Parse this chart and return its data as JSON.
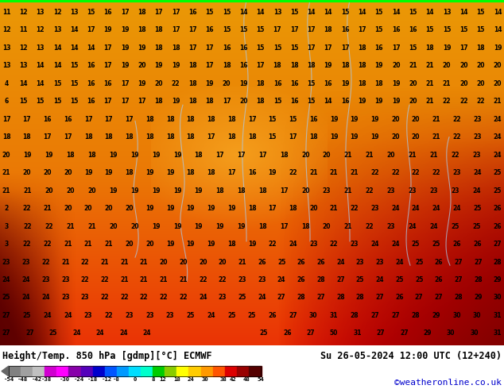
{
  "title_left": "Height/Temp. 850 hPa [gdmp][°C] ECMWF",
  "title_right": "Su 26-05-2024 12:00 UTC (12+240)",
  "credit": "©weatheronline.co.uk",
  "colorbar_tick_labels": [
    "-54",
    "-48",
    "-42",
    "-38",
    "-30",
    "-24",
    "-18",
    "-12",
    "-8",
    "0",
    "8",
    "12",
    "18",
    "24",
    "30",
    "38",
    "42",
    "48",
    "54"
  ],
  "colorbar_tick_vals": [
    -54,
    -48,
    -42,
    -38,
    -30,
    -24,
    -18,
    -12,
    -8,
    0,
    8,
    12,
    18,
    24,
    30,
    38,
    42,
    48,
    54
  ],
  "colorbar_colors": [
    "#808080",
    "#a0a0a0",
    "#c0c0c0",
    "#e0e0e0",
    "#c800c8",
    "#ff00ff",
    "#c800c8",
    "#9600c8",
    "#0000c8",
    "#0064ff",
    "#0096ff",
    "#00c8ff",
    "#00ffc8",
    "#00c800",
    "#96c800",
    "#ffff00",
    "#ffc800",
    "#ff9600",
    "#ff6400",
    "#ff3200",
    "#c80000",
    "#960000",
    "#640000"
  ],
  "cbar_data_min": -54,
  "cbar_data_max": 54,
  "green_bar_color": "#00ff00",
  "footer_bg": "#ffffff",
  "title_fontsize": 8.5,
  "credit_fontsize": 8,
  "credit_color": "#0000cc",
  "map_bg_colors": {
    "yellow_orange": "#f5a500",
    "orange": "#e07800",
    "dark_orange": "#c05000",
    "red": "#b02000",
    "dark_red": "#800000"
  },
  "numbers_rows": [
    [
      "11",
      "12",
      "13",
      "12",
      "13",
      "15",
      "16",
      "17",
      "18",
      "17",
      "17",
      "16",
      "15",
      "15",
      "14",
      "14",
      "13",
      "15",
      "14",
      "14",
      "15",
      "14",
      "15",
      "14",
      "15",
      "14",
      "13",
      "14",
      "15",
      "14"
    ],
    [
      "12",
      "11",
      "12",
      "13",
      "14",
      "17",
      "19",
      "19",
      "18",
      "18",
      "17",
      "17",
      "16",
      "15",
      "15",
      "15",
      "17",
      "17",
      "17",
      "18",
      "16",
      "17",
      "15",
      "16",
      "16",
      "15",
      "15",
      "15",
      "15",
      "14"
    ],
    [
      "13",
      "12",
      "13",
      "14",
      "14",
      "14",
      "17",
      "19",
      "19",
      "18",
      "18",
      "17",
      "17",
      "16",
      "16",
      "15",
      "15",
      "15",
      "17",
      "17",
      "17",
      "18",
      "16",
      "17",
      "15",
      "18",
      "19",
      "17",
      "18",
      "19"
    ],
    [
      "13",
      "13",
      "14",
      "14",
      "15",
      "16",
      "17",
      "19",
      "20",
      "19",
      "19",
      "18",
      "17",
      "18",
      "16",
      "17",
      "18",
      "18",
      "18",
      "19",
      "18",
      "18",
      "19",
      "20",
      "21",
      "21",
      "20",
      "20",
      "20",
      "20"
    ],
    [
      "4",
      "14",
      "14",
      "15",
      "15",
      "16",
      "16",
      "17",
      "19",
      "20",
      "22",
      "18",
      "19",
      "20",
      "19",
      "18",
      "16",
      "16",
      "15",
      "16",
      "19",
      "18",
      "18",
      "19",
      "20",
      "21",
      "21",
      "20",
      "20",
      "20"
    ],
    [
      "6",
      "15",
      "15",
      "15",
      "15",
      "16",
      "17",
      "17",
      "17",
      "18",
      "19",
      "18",
      "18",
      "17",
      "20",
      "18",
      "15",
      "16",
      "15",
      "14",
      "16",
      "19",
      "19",
      "19",
      "20",
      "21",
      "22",
      "22",
      "22",
      "21"
    ],
    [
      "17",
      "17",
      "16",
      "16",
      "17",
      "17",
      "17",
      "18",
      "18",
      "18",
      "18",
      "18",
      "17",
      "15",
      "15",
      "16",
      "19",
      "19",
      "19",
      "20",
      "20",
      "21",
      "22",
      "23",
      "24"
    ],
    [
      "18",
      "18",
      "17",
      "17",
      "18",
      "18",
      "18",
      "18",
      "18",
      "18",
      "17",
      "18",
      "18",
      "15",
      "17",
      "18",
      "19",
      "19",
      "19",
      "20",
      "20",
      "21",
      "22",
      "23",
      "24"
    ],
    [
      "20",
      "19",
      "19",
      "18",
      "18",
      "19",
      "19",
      "19",
      "19",
      "18",
      "17",
      "17",
      "17",
      "18",
      "20",
      "20",
      "21",
      "21",
      "20",
      "21",
      "21",
      "22",
      "23",
      "24"
    ],
    [
      "21",
      "20",
      "20",
      "20",
      "19",
      "19",
      "18",
      "19",
      "19",
      "18",
      "18",
      "17",
      "16",
      "19",
      "22",
      "21",
      "21",
      "21",
      "22",
      "22",
      "22",
      "22",
      "23",
      "24",
      "25"
    ],
    [
      "21",
      "21",
      "20",
      "20",
      "20",
      "19",
      "19",
      "19",
      "19",
      "19",
      "18",
      "18",
      "18",
      "17",
      "20",
      "23",
      "21",
      "22",
      "23",
      "23",
      "23",
      "23",
      "24",
      "25"
    ],
    [
      "2",
      "22",
      "21",
      "20",
      "20",
      "20",
      "20",
      "19",
      "19",
      "19",
      "19",
      "19",
      "18",
      "17",
      "18",
      "20",
      "21",
      "22",
      "23",
      "24",
      "24",
      "24",
      "24",
      "25",
      "26"
    ],
    [
      "3",
      "22",
      "22",
      "21",
      "21",
      "20",
      "20",
      "19",
      "19",
      "19",
      "19",
      "19",
      "18",
      "17",
      "18",
      "20",
      "21",
      "22",
      "23",
      "24",
      "24",
      "25",
      "25",
      "26"
    ],
    [
      "3",
      "22",
      "22",
      "21",
      "21",
      "21",
      "20",
      "20",
      "19",
      "19",
      "19",
      "18",
      "19",
      "22",
      "24",
      "23",
      "22",
      "23",
      "24",
      "24",
      "25",
      "25",
      "26",
      "26",
      "27"
    ],
    [
      "23",
      "23",
      "22",
      "21",
      "22",
      "21",
      "21",
      "21",
      "20",
      "20",
      "20",
      "20",
      "21",
      "26",
      "25",
      "26",
      "26",
      "24",
      "23",
      "23",
      "24",
      "25",
      "26",
      "27",
      "27",
      "28"
    ],
    [
      "24",
      "24",
      "23",
      "23",
      "22",
      "22",
      "21",
      "21",
      "21",
      "21",
      "22",
      "22",
      "23",
      "23",
      "24",
      "26",
      "28",
      "27",
      "25",
      "24",
      "25",
      "25",
      "26",
      "27",
      "28",
      "29"
    ],
    [
      "25",
      "24",
      "24",
      "23",
      "23",
      "22",
      "22",
      "22",
      "22",
      "22",
      "24",
      "23",
      "25",
      "24",
      "27",
      "28",
      "27",
      "28",
      "28",
      "27",
      "26",
      "27",
      "27",
      "28",
      "29",
      "30"
    ],
    [
      "27",
      "25",
      "24",
      "24",
      "23",
      "22",
      "23",
      "23",
      "23",
      "25",
      "24",
      "25",
      "25",
      "26",
      "27",
      "30",
      "31",
      "28",
      "27",
      "27",
      "28",
      "29",
      "30",
      "30",
      "31"
    ],
    [
      "27",
      "27",
      "25",
      "24",
      "24",
      "24",
      "24",
      "",
      "",
      "",
      "",
      "25",
      "26",
      "27",
      "50",
      "31",
      "27",
      "27",
      "29",
      "30",
      "30",
      "31"
    ]
  ],
  "contour_lines": [
    {
      "x": [
        310,
        320,
        330,
        325,
        315,
        308
      ],
      "y": [
        30,
        80,
        150,
        200,
        250,
        280
      ]
    },
    {
      "x": [
        380,
        390,
        400,
        395,
        385,
        378
      ],
      "y": [
        40,
        100,
        170,
        220,
        260,
        290
      ]
    },
    {
      "x": [
        440,
        460,
        480,
        470,
        450,
        435
      ],
      "y": [
        50,
        110,
        180,
        230,
        270,
        300
      ]
    }
  ]
}
